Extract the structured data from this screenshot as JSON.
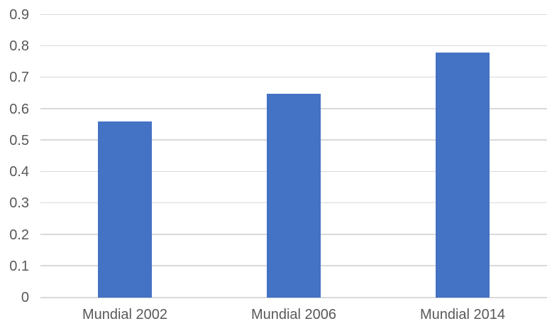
{
  "chart_data": {
    "type": "bar",
    "title": "",
    "xlabel": "",
    "ylabel": "",
    "categories": [
      "Mundial 2002",
      "Mundial 2006",
      "Mundial 2014"
    ],
    "values": [
      0.56,
      0.65,
      0.78
    ],
    "ylim": [
      0,
      0.9
    ],
    "y_ticks": [
      "0",
      "0.1",
      "0.2",
      "0.3",
      "0.4",
      "0.5",
      "0.6",
      "0.7",
      "0.8",
      "0.9"
    ],
    "grid": true,
    "legend": false,
    "colors": {
      "bar": "#4472C4",
      "gridline": "#D9D9D9",
      "axis_line": "#D9D9D9",
      "tick_label": "#595959",
      "background": "#FFFFFF"
    }
  }
}
